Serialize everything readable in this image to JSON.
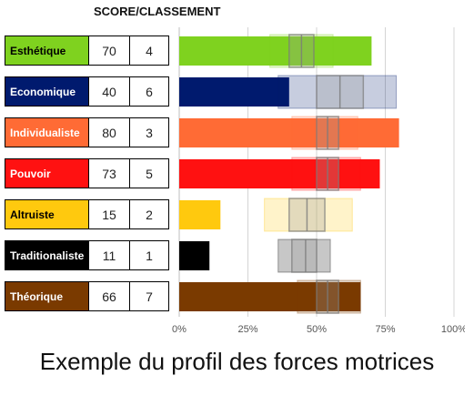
{
  "header": "SCORE/CLASSEMENT",
  "caption": "Exemple du profil des forces motrices",
  "chart_data": {
    "type": "bar",
    "orientation": "horizontal",
    "x_ticks": [
      "0%",
      "25%",
      "50%",
      "75%",
      "100%"
    ],
    "xlim": [
      0,
      100
    ],
    "categories": [
      "Esthétique",
      "Economique",
      "Individualiste",
      "Pouvoir",
      "Altruiste",
      "Traditionaliste",
      "Théorique"
    ],
    "rows": [
      {
        "label": "Esthétique",
        "score": 70,
        "rank": 4,
        "color": "#7FD21F",
        "label_color": "#000000",
        "range_outer": [
          33,
          56
        ],
        "range_inner": [
          40,
          49
        ],
        "median": 44.5
      },
      {
        "label": "Economique",
        "score": 40,
        "rank": 6,
        "color": "#001A6E",
        "label_color": "#ffffff",
        "range_outer": [
          36,
          79
        ],
        "range_inner": [
          50,
          67
        ],
        "median": 58.5
      },
      {
        "label": "Individualiste",
        "score": 80,
        "rank": 3,
        "color": "#FF6B35",
        "label_color": "#ffffff",
        "range_outer": [
          41,
          65
        ],
        "range_inner": [
          50,
          58
        ],
        "median": 54
      },
      {
        "label": "Pouvoir",
        "score": 73,
        "rank": 5,
        "color": "#FF1111",
        "label_color": "#ffffff",
        "range_outer": [
          41,
          66
        ],
        "range_inner": [
          50,
          58
        ],
        "median": 54
      },
      {
        "label": "Altruiste",
        "score": 15,
        "rank": 2,
        "color": "#FFC90E",
        "label_color": "#000000",
        "range_outer": [
          31,
          63
        ],
        "range_inner": [
          40,
          53
        ],
        "median": 46.5
      },
      {
        "label": "Traditionaliste",
        "score": 11,
        "rank": 1,
        "color": "#000000",
        "label_color": "#ffffff",
        "range_outer": [
          36,
          55
        ],
        "range_inner": [
          41,
          50
        ],
        "median": 46
      },
      {
        "label": "Théorique",
        "score": 66,
        "rank": 7,
        "color": "#7A3A00",
        "label_color": "#ffffff",
        "range_outer": [
          43,
          66
        ],
        "range_inner": [
          50,
          58
        ],
        "median": 54
      }
    ]
  }
}
